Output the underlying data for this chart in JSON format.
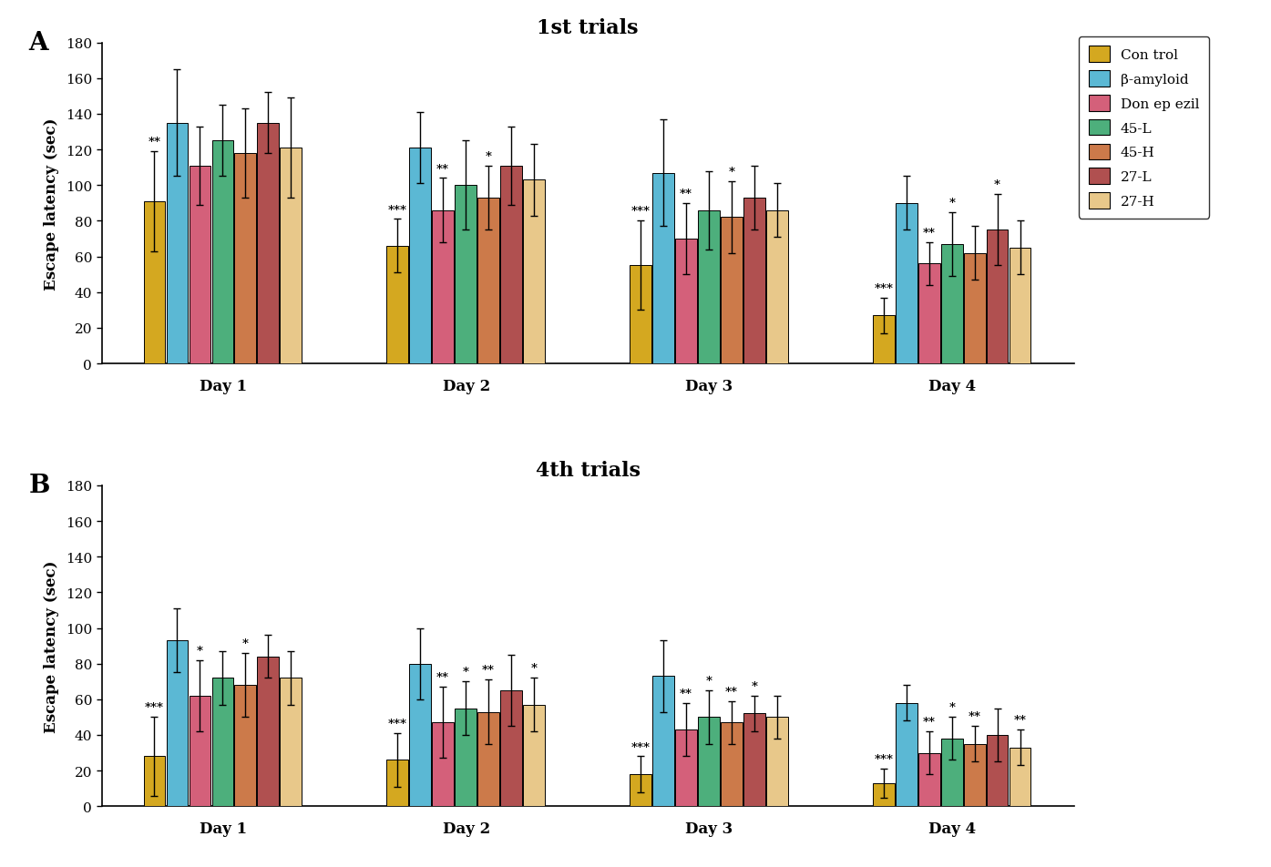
{
  "panel_A": {
    "title": "1st trials",
    "ylabel": "Escape latency (sec)",
    "days": [
      "Day 1",
      "Day 2",
      "Day 3",
      "Day 4"
    ],
    "groups": [
      "Control",
      "β-amyloid",
      "Donepezil",
      "45-L",
      "45-H",
      "27-L",
      "27-H"
    ],
    "values": [
      [
        91,
        135,
        111,
        125,
        118,
        135,
        121
      ],
      [
        66,
        121,
        86,
        100,
        93,
        111,
        103
      ],
      [
        55,
        107,
        70,
        86,
        82,
        93,
        86
      ],
      [
        27,
        90,
        56,
        67,
        62,
        75,
        65
      ]
    ],
    "errors": [
      [
        28,
        30,
        22,
        20,
        25,
        17,
        28
      ],
      [
        15,
        20,
        18,
        25,
        18,
        22,
        20
      ],
      [
        25,
        30,
        20,
        22,
        20,
        18,
        15
      ],
      [
        10,
        15,
        12,
        18,
        15,
        20,
        15
      ]
    ],
    "significance": [
      [
        "**",
        "",
        "",
        "",
        "",
        "",
        ""
      ],
      [
        "***",
        "",
        "**",
        "",
        "*",
        "",
        ""
      ],
      [
        "***",
        "",
        "**",
        "",
        "*",
        "",
        ""
      ],
      [
        "***",
        "",
        "**",
        "*",
        "",
        "*",
        ""
      ]
    ]
  },
  "panel_B": {
    "title": "4th trials",
    "ylabel": "Escape latency (sec)",
    "days": [
      "Day 1",
      "Day 2",
      "Day 3",
      "Day 4"
    ],
    "groups": [
      "Control",
      "β-amyloid",
      "Donepezil",
      "45-L",
      "45-H",
      "27-L",
      "27-H"
    ],
    "values": [
      [
        28,
        93,
        62,
        72,
        68,
        84,
        72
      ],
      [
        26,
        80,
        47,
        55,
        53,
        65,
        57
      ],
      [
        18,
        73,
        43,
        50,
        47,
        52,
        50
      ],
      [
        13,
        58,
        30,
        38,
        35,
        40,
        33
      ]
    ],
    "errors": [
      [
        22,
        18,
        20,
        15,
        18,
        12,
        15
      ],
      [
        15,
        20,
        20,
        15,
        18,
        20,
        15
      ],
      [
        10,
        20,
        15,
        15,
        12,
        10,
        12
      ],
      [
        8,
        10,
        12,
        12,
        10,
        15,
        10
      ]
    ],
    "significance": [
      [
        "***",
        "",
        "*",
        "",
        "*",
        "",
        ""
      ],
      [
        "***",
        "",
        "**",
        "*",
        "**",
        "",
        "*"
      ],
      [
        "***",
        "",
        "**",
        "*",
        "**",
        "*",
        ""
      ],
      [
        "***",
        "",
        "**",
        "*",
        "**",
        "",
        "**"
      ]
    ]
  },
  "colors": [
    "#D4A820",
    "#5BB8D4",
    "#D4607A",
    "#4DAF7C",
    "#CC7A4A",
    "#B05050",
    "#E8C88A"
  ],
  "legend_labels": [
    "Con trol",
    "β-amyloid",
    "Don ep ezil",
    "45-L",
    "45-H",
    "27-L",
    "27-H"
  ],
  "legend_colors": [
    "#D4A820",
    "#5BB8D4",
    "#D4607A",
    "#4DAF7C",
    "#CC7A4A",
    "#B05050",
    "#E8C88A"
  ],
  "ylim": [
    0,
    180
  ],
  "yticks": [
    0,
    20,
    40,
    60,
    80,
    100,
    120,
    140,
    160,
    180
  ]
}
